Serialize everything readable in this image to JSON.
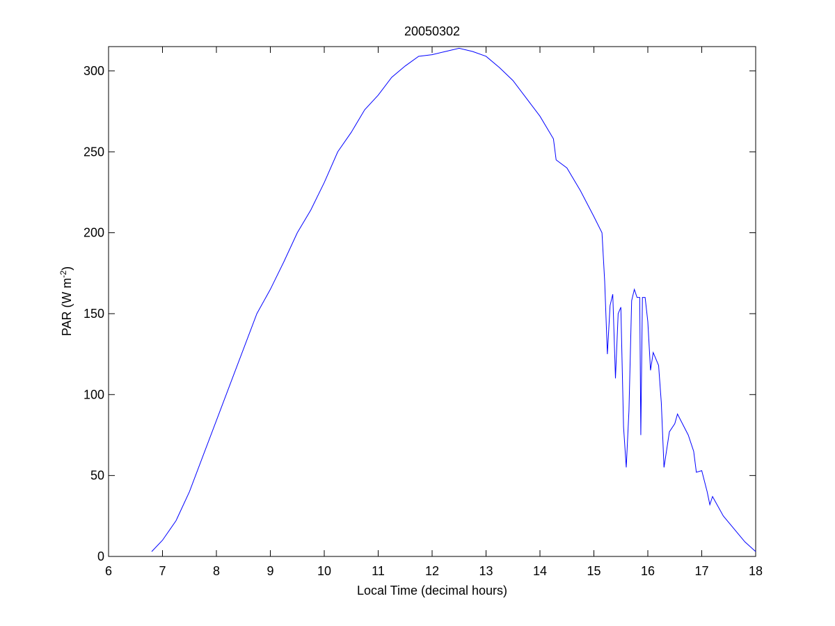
{
  "chart_data": {
    "type": "line",
    "title": "20050302",
    "xlabel": "Local Time (decimal hours)",
    "ylabel": [
      "PAR (W m",
      "-2",
      ")"
    ],
    "x": [
      6.8,
      7.0,
      7.25,
      7.5,
      7.75,
      8.0,
      8.25,
      8.5,
      8.75,
      9.0,
      9.25,
      9.5,
      9.75,
      10.0,
      10.25,
      10.5,
      10.75,
      11.0,
      11.25,
      11.5,
      11.75,
      12.0,
      12.25,
      12.5,
      12.75,
      13.0,
      13.25,
      13.5,
      13.75,
      14.0,
      14.25,
      14.3,
      14.5,
      14.75,
      15.0,
      15.15,
      15.2,
      15.25,
      15.3,
      15.35,
      15.4,
      15.45,
      15.5,
      15.55,
      15.6,
      15.65,
      15.7,
      15.75,
      15.8,
      15.85,
      15.87,
      15.9,
      15.95,
      16.0,
      16.05,
      16.1,
      16.2,
      16.25,
      16.3,
      16.4,
      16.5,
      16.55,
      16.75,
      16.85,
      16.9,
      17.0,
      17.1,
      17.15,
      17.2,
      17.4,
      17.6,
      17.8,
      18.0
    ],
    "series": [
      {
        "name": "PAR",
        "color": "#0000ff",
        "values": [
          3,
          10,
          22,
          40,
          62,
          84,
          106,
          128,
          150,
          165,
          182,
          200,
          214,
          231,
          250,
          262,
          276,
          285,
          296,
          303,
          309,
          310,
          312,
          314,
          312,
          309,
          302,
          294,
          283,
          272,
          258,
          245,
          240,
          226,
          210,
          200,
          170,
          125,
          155,
          162,
          110,
          150,
          154,
          80,
          55,
          90,
          158,
          165,
          160,
          160,
          75,
          160,
          160,
          145,
          115,
          126,
          118,
          95,
          55,
          77,
          82,
          88,
          75,
          65,
          52,
          53,
          40,
          32,
          37,
          25,
          17,
          9,
          3
        ]
      }
    ],
    "xlim": [
      6,
      18
    ],
    "xticks": [
      6,
      7,
      8,
      9,
      10,
      11,
      12,
      13,
      14,
      15,
      16,
      17,
      18
    ],
    "ylim": [
      0,
      315
    ],
    "yticks": [
      0,
      50,
      100,
      150,
      200,
      250,
      300
    ]
  }
}
